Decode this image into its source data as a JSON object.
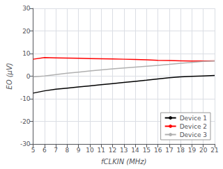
{
  "chart_data": {
    "type": "line",
    "title": "",
    "xlabel": "fCLKIN (MHz)",
    "ylabel": "EO (μV)",
    "x": [
      5,
      6,
      7,
      8,
      9,
      10,
      11,
      12,
      13,
      14,
      15,
      16,
      17,
      18,
      19,
      20,
      21
    ],
    "series": [
      {
        "name": "Device 1",
        "color": "#000000",
        "values": [
          -7.5,
          -6.5,
          -5.8,
          -5.3,
          -4.8,
          -4.3,
          -3.8,
          -3.3,
          -2.8,
          -2.3,
          -1.8,
          -1.2,
          -0.7,
          -0.3,
          -0.1,
          0.1,
          0.3
        ]
      },
      {
        "name": "Device 2",
        "color": "#ff0000",
        "values": [
          7.5,
          8.2,
          8.1,
          8.0,
          7.9,
          7.8,
          7.7,
          7.6,
          7.5,
          7.4,
          7.2,
          7.0,
          6.9,
          6.8,
          6.7,
          6.7,
          6.8
        ]
      },
      {
        "name": "Device 3",
        "color": "#b0b0b0",
        "values": [
          -0.3,
          0.1,
          0.7,
          1.3,
          1.8,
          2.3,
          2.8,
          3.2,
          3.6,
          4.0,
          4.4,
          4.8,
          5.2,
          5.7,
          6.1,
          6.5,
          6.7
        ]
      }
    ],
    "xlim": [
      5,
      21
    ],
    "ylim": [
      -30,
      30
    ],
    "xticks": [
      5,
      6,
      7,
      8,
      9,
      10,
      11,
      12,
      13,
      14,
      15,
      16,
      17,
      18,
      19,
      20,
      21
    ],
    "yticks": [
      -30,
      -20,
      -10,
      0,
      10,
      20,
      30
    ],
    "grid": true,
    "legend": "lower right"
  }
}
